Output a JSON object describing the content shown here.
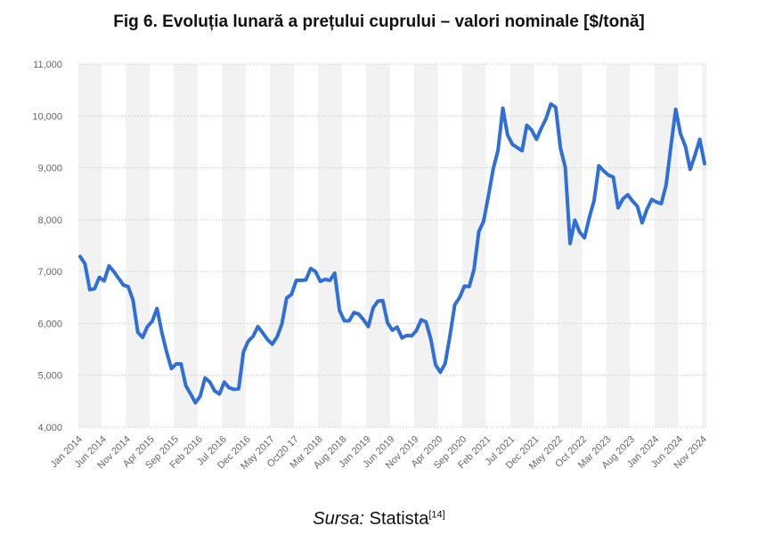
{
  "title": "Fig 6. Evoluția lunară a prețului cuprului – valori nominale [$/tonă]",
  "caption": {
    "source_prefix": "Sursa:",
    "source_name": "Statista",
    "reference": "[14]"
  },
  "colors": {
    "line": "#2f6fd6",
    "band": "#f2f2f2",
    "grid": "#cccccc"
  },
  "chart_data": {
    "type": "line",
    "title": "Fig 6. Evoluția lunară a prețului cuprului – valori nominale [$/tonă]",
    "xlabel": "",
    "ylabel": "",
    "ylim": [
      4000,
      11000
    ],
    "yticks": [
      4000,
      5000,
      6000,
      7000,
      8000,
      9000,
      10000,
      11000
    ],
    "ytick_labels": [
      "4,000",
      "5,000",
      "6,000",
      "7,000",
      "8,000",
      "9,000",
      "10,000",
      "11,000"
    ],
    "grid": true,
    "legend": "none",
    "xtick_labels": [
      "Jan 2014",
      "Jun 2014",
      "Nov 2014",
      "Apr 2015",
      "Sep 2015",
      "Feb 2016",
      "Jul 2016",
      "Dec 2016",
      "May 2017",
      "Oct20 17",
      "Mar 2018",
      "Aug 2018",
      "Jan 2019",
      "Jun 2019",
      "Nov 2019",
      "Apr 2020",
      "Sep 2020",
      "Feb 2021",
      "Jul 2021",
      "Dec 2021",
      "May 2022",
      "Oct 2022",
      "Mar 2023",
      "Aug 2023",
      "Jan 2024",
      "Jun 2024",
      "Nov 2024"
    ],
    "series": [
      {
        "values": [
          7290,
          7150,
          6650,
          6670,
          6890,
          6820,
          7110,
          7000,
          6870,
          6740,
          6710,
          6450,
          5830,
          5730,
          5940,
          6040,
          6290,
          5830,
          5450,
          5130,
          5220,
          5220,
          4800,
          4640,
          4470,
          4600,
          4950,
          4870,
          4700,
          4640,
          4870,
          4760,
          4730,
          4740,
          5450,
          5660,
          5750,
          5940,
          5820,
          5690,
          5600,
          5740,
          5990,
          6490,
          6560,
          6830,
          6830,
          6840,
          7060,
          7000,
          6810,
          6850,
          6830,
          6970,
          6250,
          6050,
          6050,
          6210,
          6180,
          6070,
          5940,
          6300,
          6430,
          6440,
          6010,
          5870,
          5930,
          5720,
          5770,
          5760,
          5860,
          6070,
          6030,
          5700,
          5200,
          5060,
          5230,
          5770,
          6360,
          6500,
          6720,
          6710,
          7040,
          7770,
          7970,
          8460,
          8980,
          9340,
          10150,
          9630,
          9450,
          9390,
          9330,
          9820,
          9730,
          9550,
          9760,
          9950,
          10230,
          10170,
          9380,
          9010,
          7540,
          7990,
          7760,
          7650,
          8040,
          8370,
          9040,
          8940,
          8860,
          8820,
          8230,
          8400,
          8480,
          8360,
          8260,
          7940,
          8200,
          8390,
          8340,
          8310,
          8670,
          9420,
          10130,
          9650,
          9420,
          8970,
          9240,
          9550,
          9080
        ]
      }
    ]
  }
}
